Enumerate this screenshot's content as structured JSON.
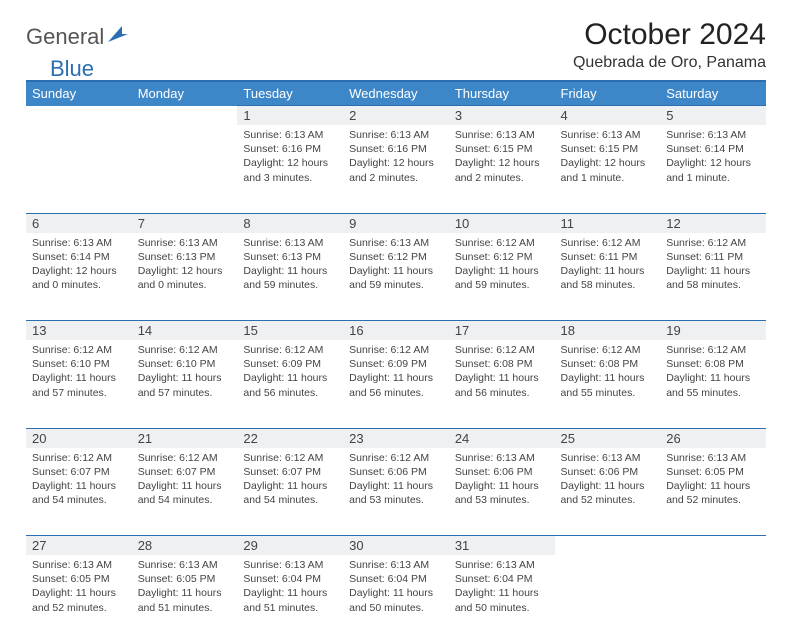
{
  "brand": {
    "part1": "General",
    "part2": "Blue"
  },
  "title": "October 2024",
  "location": "Quebrada de Oro, Panama",
  "colors": {
    "headerBg": "#3d87c9",
    "borderAccent": "#2b6fb0",
    "dayNumBg": "#eef0f2"
  },
  "weekdays": [
    "Sunday",
    "Monday",
    "Tuesday",
    "Wednesday",
    "Thursday",
    "Friday",
    "Saturday"
  ],
  "weeks": [
    [
      null,
      null,
      {
        "n": "1",
        "sr": "6:13 AM",
        "ss": "6:16 PM",
        "dl": "12 hours and 3 minutes."
      },
      {
        "n": "2",
        "sr": "6:13 AM",
        "ss": "6:16 PM",
        "dl": "12 hours and 2 minutes."
      },
      {
        "n": "3",
        "sr": "6:13 AM",
        "ss": "6:15 PM",
        "dl": "12 hours and 2 minutes."
      },
      {
        "n": "4",
        "sr": "6:13 AM",
        "ss": "6:15 PM",
        "dl": "12 hours and 1 minute."
      },
      {
        "n": "5",
        "sr": "6:13 AM",
        "ss": "6:14 PM",
        "dl": "12 hours and 1 minute."
      }
    ],
    [
      {
        "n": "6",
        "sr": "6:13 AM",
        "ss": "6:14 PM",
        "dl": "12 hours and 0 minutes."
      },
      {
        "n": "7",
        "sr": "6:13 AM",
        "ss": "6:13 PM",
        "dl": "12 hours and 0 minutes."
      },
      {
        "n": "8",
        "sr": "6:13 AM",
        "ss": "6:13 PM",
        "dl": "11 hours and 59 minutes."
      },
      {
        "n": "9",
        "sr": "6:13 AM",
        "ss": "6:12 PM",
        "dl": "11 hours and 59 minutes."
      },
      {
        "n": "10",
        "sr": "6:12 AM",
        "ss": "6:12 PM",
        "dl": "11 hours and 59 minutes."
      },
      {
        "n": "11",
        "sr": "6:12 AM",
        "ss": "6:11 PM",
        "dl": "11 hours and 58 minutes."
      },
      {
        "n": "12",
        "sr": "6:12 AM",
        "ss": "6:11 PM",
        "dl": "11 hours and 58 minutes."
      }
    ],
    [
      {
        "n": "13",
        "sr": "6:12 AM",
        "ss": "6:10 PM",
        "dl": "11 hours and 57 minutes."
      },
      {
        "n": "14",
        "sr": "6:12 AM",
        "ss": "6:10 PM",
        "dl": "11 hours and 57 minutes."
      },
      {
        "n": "15",
        "sr": "6:12 AM",
        "ss": "6:09 PM",
        "dl": "11 hours and 56 minutes."
      },
      {
        "n": "16",
        "sr": "6:12 AM",
        "ss": "6:09 PM",
        "dl": "11 hours and 56 minutes."
      },
      {
        "n": "17",
        "sr": "6:12 AM",
        "ss": "6:08 PM",
        "dl": "11 hours and 56 minutes."
      },
      {
        "n": "18",
        "sr": "6:12 AM",
        "ss": "6:08 PM",
        "dl": "11 hours and 55 minutes."
      },
      {
        "n": "19",
        "sr": "6:12 AM",
        "ss": "6:08 PM",
        "dl": "11 hours and 55 minutes."
      }
    ],
    [
      {
        "n": "20",
        "sr": "6:12 AM",
        "ss": "6:07 PM",
        "dl": "11 hours and 54 minutes."
      },
      {
        "n": "21",
        "sr": "6:12 AM",
        "ss": "6:07 PM",
        "dl": "11 hours and 54 minutes."
      },
      {
        "n": "22",
        "sr": "6:12 AM",
        "ss": "6:07 PM",
        "dl": "11 hours and 54 minutes."
      },
      {
        "n": "23",
        "sr": "6:12 AM",
        "ss": "6:06 PM",
        "dl": "11 hours and 53 minutes."
      },
      {
        "n": "24",
        "sr": "6:13 AM",
        "ss": "6:06 PM",
        "dl": "11 hours and 53 minutes."
      },
      {
        "n": "25",
        "sr": "6:13 AM",
        "ss": "6:06 PM",
        "dl": "11 hours and 52 minutes."
      },
      {
        "n": "26",
        "sr": "6:13 AM",
        "ss": "6:05 PM",
        "dl": "11 hours and 52 minutes."
      }
    ],
    [
      {
        "n": "27",
        "sr": "6:13 AM",
        "ss": "6:05 PM",
        "dl": "11 hours and 52 minutes."
      },
      {
        "n": "28",
        "sr": "6:13 AM",
        "ss": "6:05 PM",
        "dl": "11 hours and 51 minutes."
      },
      {
        "n": "29",
        "sr": "6:13 AM",
        "ss": "6:04 PM",
        "dl": "11 hours and 51 minutes."
      },
      {
        "n": "30",
        "sr": "6:13 AM",
        "ss": "6:04 PM",
        "dl": "11 hours and 50 minutes."
      },
      {
        "n": "31",
        "sr": "6:13 AM",
        "ss": "6:04 PM",
        "dl": "11 hours and 50 minutes."
      },
      null,
      null
    ]
  ],
  "labels": {
    "sunrise": "Sunrise:",
    "sunset": "Sunset:",
    "daylight": "Daylight:"
  }
}
